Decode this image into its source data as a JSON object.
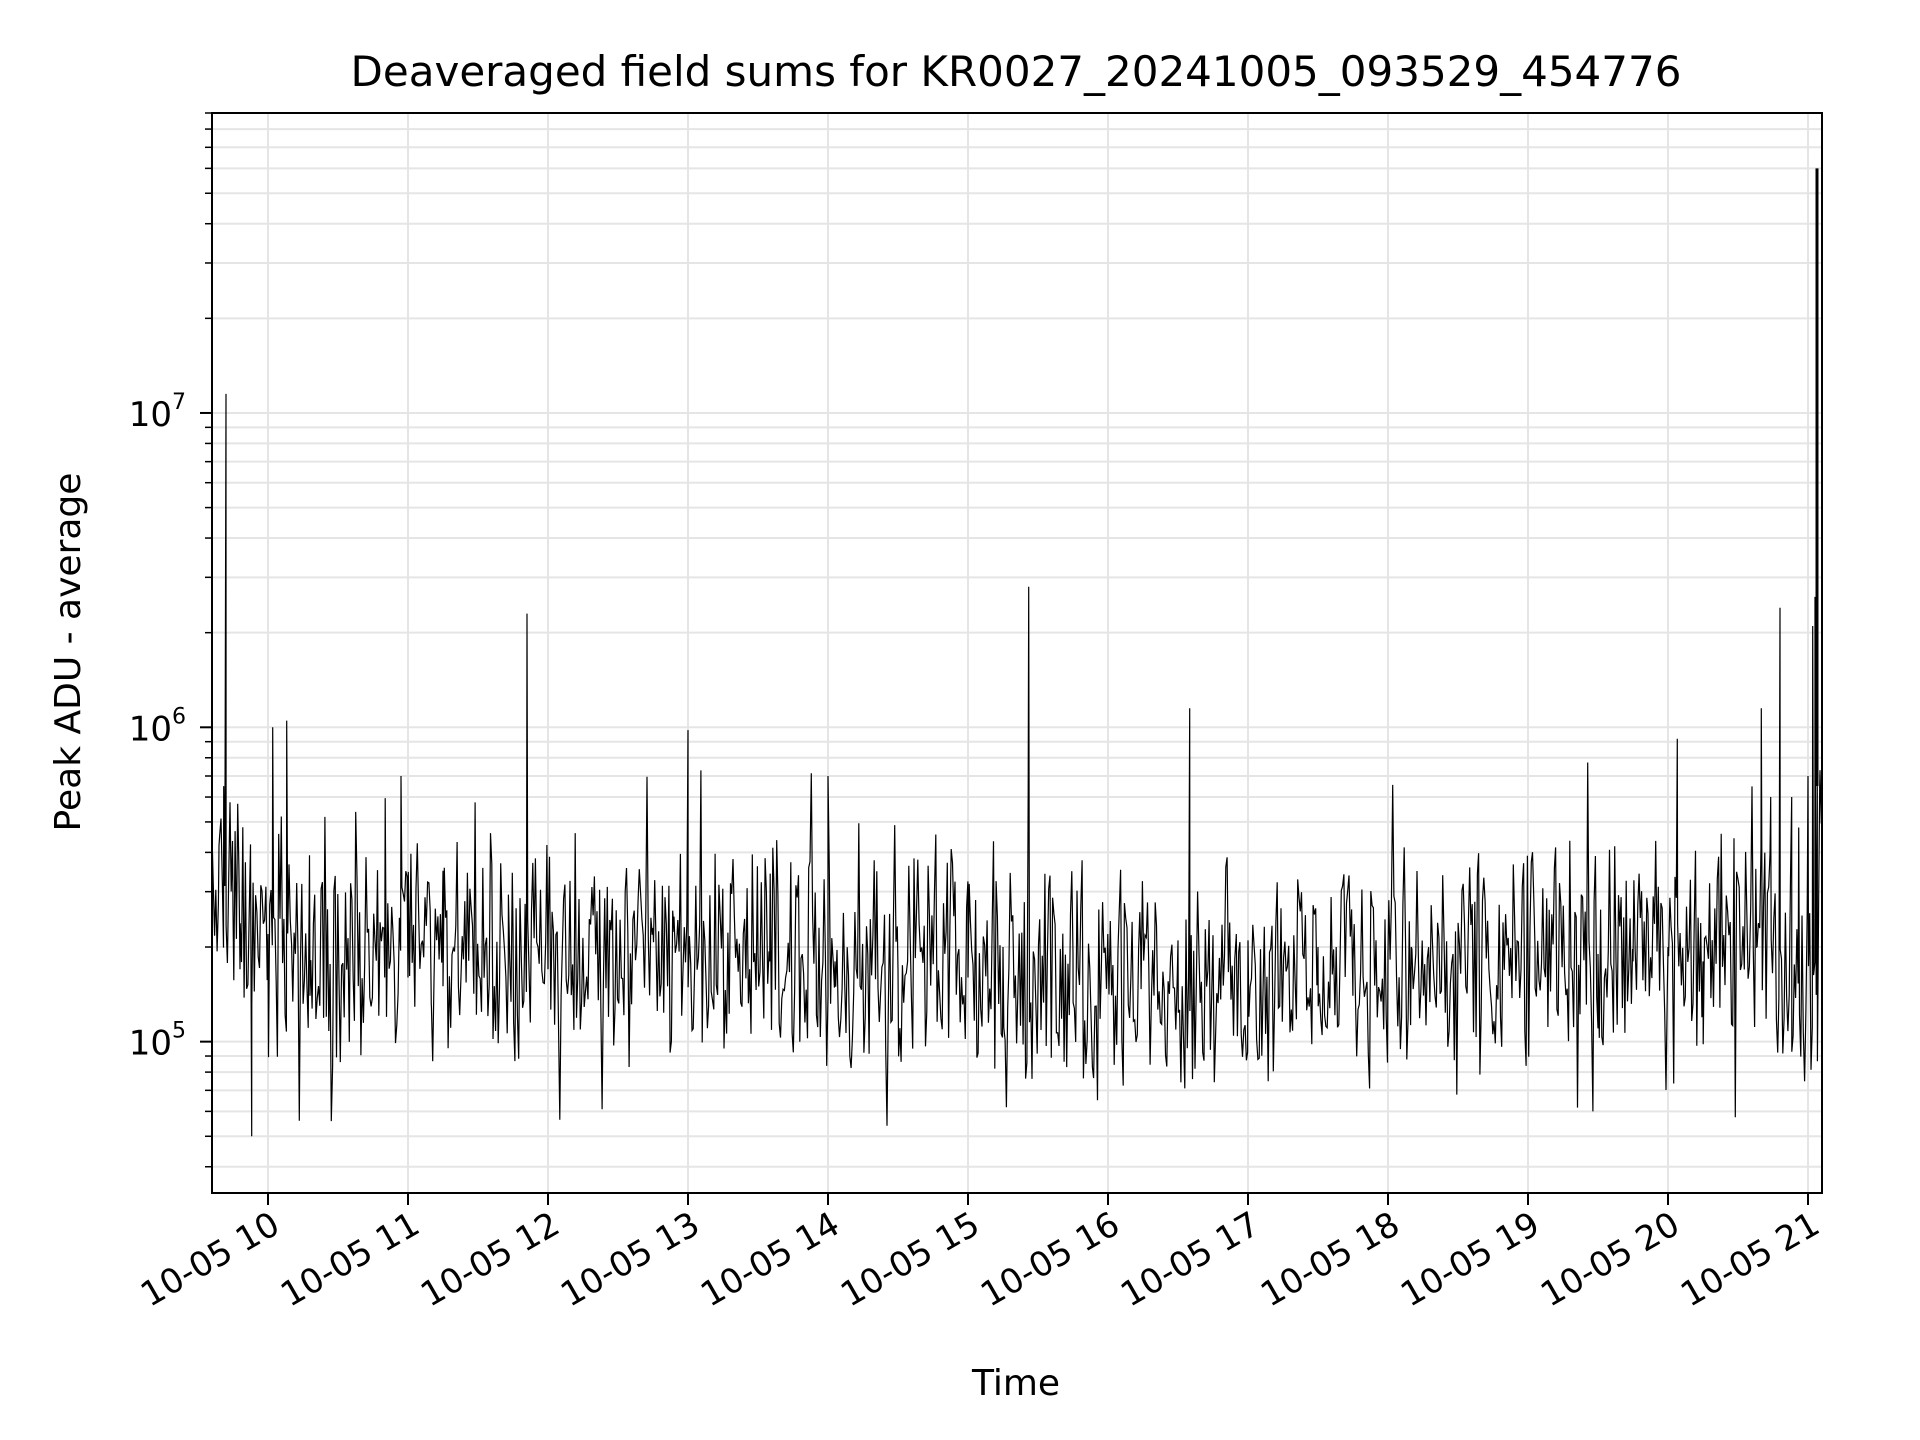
{
  "chart_data": {
    "type": "line",
    "title": "Deaveraged field sums for KR0027_20241005_093529_454776",
    "xlabel": "Time",
    "ylabel": "Peak ADU - average",
    "yscale": "log",
    "ylim": [
      33000,
      90000000
    ],
    "xlim": [
      "10-05 09:36",
      "10-05 21:06"
    ],
    "grid": true,
    "line_color": "#000000",
    "x_ticks": [
      "10-05 10",
      "10-05 11",
      "10-05 12",
      "10-05 13",
      "10-05 14",
      "10-05 15",
      "10-05 16",
      "10-05 17",
      "10-05 18",
      "10-05 19",
      "10-05 20",
      "10-05 21"
    ],
    "y_ticks": [
      {
        "value": 100000,
        "base": "10",
        "exp": "5"
      },
      {
        "value": 1000000,
        "base": "10",
        "exp": "6"
      },
      {
        "value": 10000000,
        "base": "10",
        "exp": "7"
      }
    ],
    "series": [
      {
        "x": [
          "10-05 09:36",
          "10-05 09:39",
          "10-05 09:41",
          "10-05 09:42",
          "10-05 09:45",
          "10-05 09:48",
          "10-05 09:53",
          "10-05 10:00",
          "10-05 10:02",
          "10-05 10:08",
          "10-05 10:18",
          "10-05 10:25",
          "10-05 10:40",
          "10-05 10:50",
          "10-05 10:57",
          "10-05 11:00",
          "10-05 11:10",
          "10-05 11:15",
          "10-05 11:43",
          "10-05 11:45",
          "10-05 11:51",
          "10-05 12:00",
          "10-05 12:09",
          "10-05 12:22",
          "10-05 12:45",
          "10-05 12:54",
          "10-05 13:00",
          "10-05 13:03",
          "10-05 13:30",
          "10-05 13:35",
          "10-05 13:55",
          "10-05 14:00",
          "10-05 14:03",
          "10-05 14:30",
          "10-05 14:45",
          "10-05 15:00",
          "10-05 15:15",
          "10-05 15:26",
          "10-05 15:45",
          "10-05 16:00",
          "10-05 16:14",
          "10-05 16:30",
          "10-05 16:35",
          "10-05 16:55",
          "10-05 17:00",
          "10-05 17:30",
          "10-05 17:45",
          "10-05 18:00",
          "10-05 18:10",
          "10-05 18:30",
          "10-05 19:00",
          "10-05 19:03",
          "10-05 19:30",
          "10-05 19:45",
          "10-05 20:00",
          "10-05 20:04",
          "10-05 20:15",
          "10-05 20:38",
          "10-05 20:40",
          "10-05 20:44",
          "10-05 20:48",
          "10-05 20:53",
          "10-05 20:56",
          "10-05 21:00",
          "10-05 21:02",
          "10-05 21:03",
          "10-05 21:04",
          "10-05 21:05"
        ],
        "y": [
          230000,
          420000,
          650000,
          11500000,
          260000,
          170000,
          50000,
          220000,
          1000000,
          1050000,
          140000,
          120000,
          110000,
          160000,
          700000,
          160000,
          130000,
          150000,
          180000,
          230000,
          2300000,
          170000,
          190000,
          200000,
          230000,
          250000,
          980000,
          200000,
          190000,
          180000,
          170000,
          700000,
          180000,
          170000,
          190000,
          160000,
          200000,
          2800000,
          190000,
          200000,
          200000,
          210000,
          1150000,
          220000,
          210000,
          200000,
          180000,
          190000,
          200000,
          190000,
          200000,
          200000,
          190000,
          180000,
          200000,
          920000,
          180000,
          200000,
          1150000,
          600000,
          2400000,
          600000,
          480000,
          700000,
          2100000,
          2600000,
          650000,
          650000
        ]
      }
    ]
  }
}
